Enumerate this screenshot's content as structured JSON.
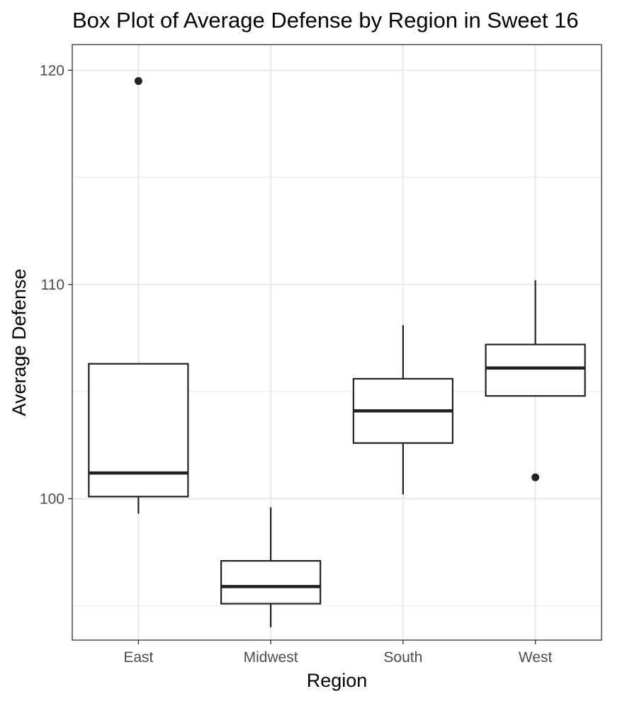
{
  "chart_data": {
    "type": "boxplot",
    "title": "Box Plot of Average Defense by Region in Sweet 16",
    "xlabel": "Region",
    "ylabel": "Average Defense",
    "ylim": [
      93.4,
      121.2
    ],
    "y_major_ticks": [
      100,
      110,
      120
    ],
    "y_minor_ticks": [
      95,
      105,
      115
    ],
    "grid": true,
    "legend": "none",
    "categories": [
      "East",
      "Midwest",
      "South",
      "West"
    ],
    "boxes": [
      {
        "category": "East",
        "whisker_low": 99.3,
        "q1": 100.1,
        "median": 101.2,
        "q3": 106.3,
        "whisker_high": 106.3,
        "outliers": [
          119.5
        ]
      },
      {
        "category": "Midwest",
        "whisker_low": 94.0,
        "q1": 95.1,
        "median": 95.9,
        "q3": 97.1,
        "whisker_high": 99.6,
        "outliers": []
      },
      {
        "category": "South",
        "whisker_low": 100.2,
        "q1": 102.6,
        "median": 104.1,
        "q3": 105.6,
        "whisker_high": 108.1,
        "outliers": []
      },
      {
        "category": "West",
        "whisker_low": 104.8,
        "q1": 104.8,
        "median": 106.1,
        "q3": 107.2,
        "whisker_high": 110.2,
        "outliers": [
          101.0
        ]
      }
    ]
  }
}
